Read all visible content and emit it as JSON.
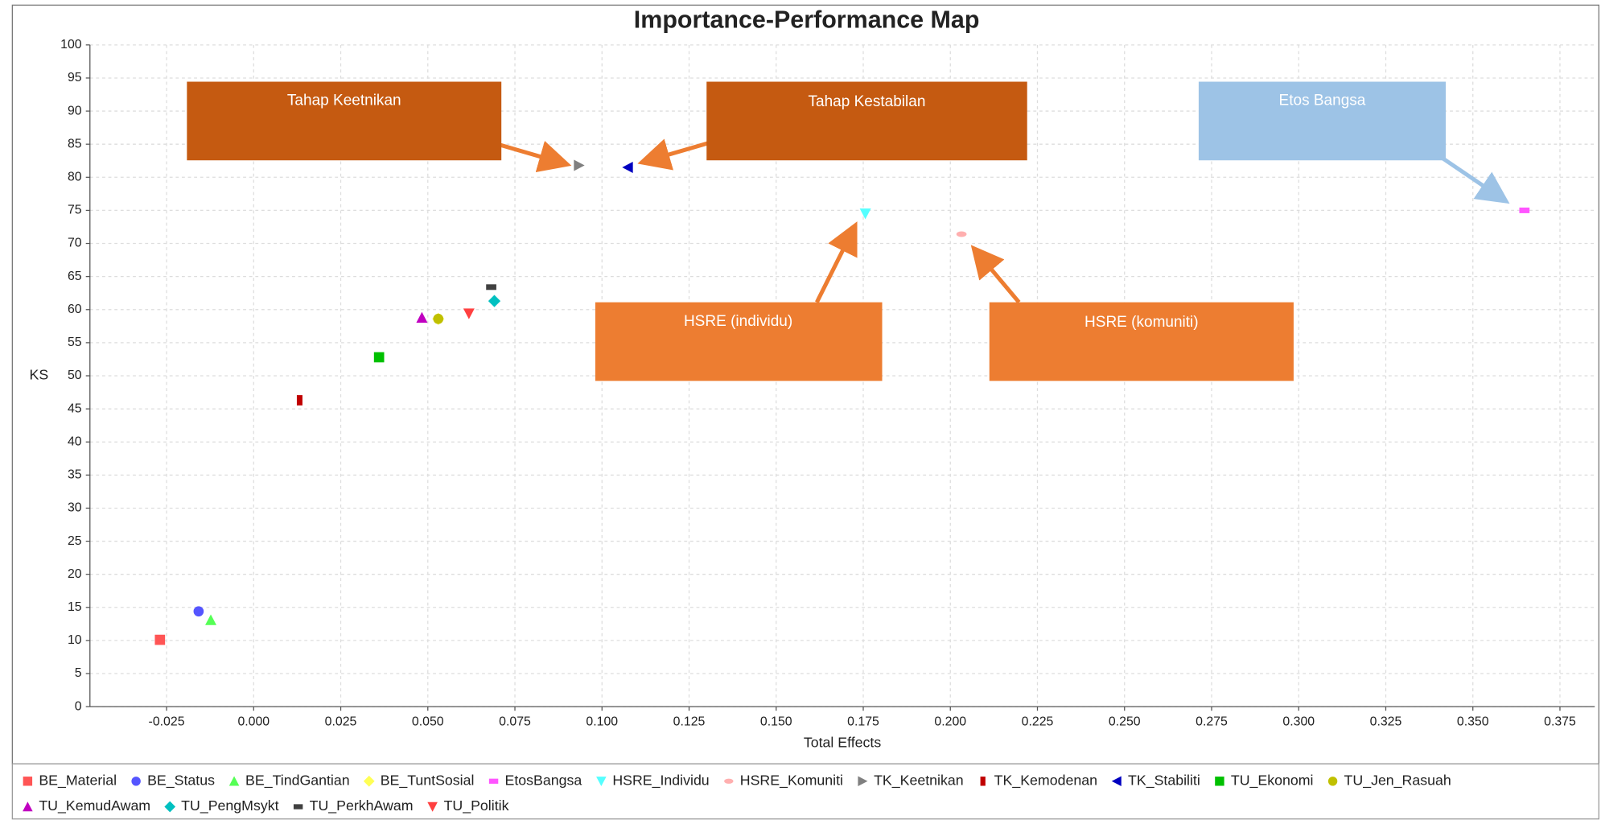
{
  "chart_data": {
    "type": "scatter",
    "title": "Importance-Performance Map",
    "x_label": "Total Effects",
    "y_label": "KS",
    "xlim": [
      -0.047,
      0.385
    ],
    "ylim": [
      0,
      100
    ],
    "xticks": [
      {
        "value": -0.025,
        "label": "-0.025"
      },
      {
        "value": 0,
        "label": "0.000"
      },
      {
        "value": 0.025,
        "label": "0.025"
      },
      {
        "value": 0.05,
        "label": "0.050"
      },
      {
        "value": 0.075,
        "label": "0.075"
      },
      {
        "value": 0.1,
        "label": "0.100"
      },
      {
        "value": 0.125,
        "label": "0.125"
      },
      {
        "value": 0.15,
        "label": "0.150"
      },
      {
        "value": 0.175,
        "label": "0.175"
      },
      {
        "value": 0.2,
        "label": "0.200"
      },
      {
        "value": 0.225,
        "label": "0.225"
      },
      {
        "value": 0.25,
        "label": "0.250"
      },
      {
        "value": 0.275,
        "label": "0.275"
      },
      {
        "value": 0.3,
        "label": "0.300"
      },
      {
        "value": 0.325,
        "label": "0.325"
      },
      {
        "value": 0.35,
        "label": "0.350"
      },
      {
        "value": 0.375,
        "label": "0.375"
      }
    ],
    "yticks": [
      0,
      5,
      10,
      15,
      20,
      25,
      30,
      35,
      40,
      45,
      50,
      55,
      60,
      65,
      70,
      75,
      80,
      85,
      90,
      95,
      100
    ],
    "grid": true,
    "legend": "bottom",
    "series": [
      {
        "name": "BE_Material",
        "color": "#ff5555",
        "marker": "square",
        "x": [
          -0.0269
        ],
        "values": [
          10.1
        ]
      },
      {
        "name": "BE_Status",
        "color": "#5555ff",
        "marker": "circle",
        "x": [
          -0.0158
        ],
        "values": [
          14.4
        ]
      },
      {
        "name": "BE_TindGantian",
        "color": "#55ff55",
        "marker": "triangle-up",
        "x": [
          -0.0123
        ],
        "values": [
          13.1
        ]
      },
      {
        "name": "BE_TuntSosial",
        "color": "#ffff55",
        "marker": "diamond",
        "x": [
          0.053
        ],
        "values": [
          58.6
        ]
      },
      {
        "name": "EtosBangsa",
        "color": "#ff55ff",
        "marker": "hbar",
        "x": [
          0.3648
        ],
        "values": [
          75.0
        ]
      },
      {
        "name": "HSRE_Individu",
        "color": "#55ffff",
        "marker": "triangle-down",
        "x": [
          0.1756
        ],
        "values": [
          74.5
        ]
      },
      {
        "name": "HSRE_Komuniti",
        "color": "#ffafaf",
        "marker": "ellipse",
        "x": [
          0.2032
        ],
        "values": [
          71.4
        ]
      },
      {
        "name": "TK_Keetnikan",
        "color": "#808080",
        "marker": "triangle-right",
        "x": [
          0.0934
        ],
        "values": [
          81.8
        ]
      },
      {
        "name": "TK_Kemodenan",
        "color": "#c00000",
        "marker": "vbar",
        "x": [
          0.0132
        ],
        "values": [
          46.3
        ]
      },
      {
        "name": "TK_Stabiliti",
        "color": "#0000c0",
        "marker": "triangle-left",
        "x": [
          0.1074
        ],
        "values": [
          81.5
        ]
      },
      {
        "name": "TU_Ekonomi",
        "color": "#00c000",
        "marker": "square",
        "x": [
          0.036
        ],
        "values": [
          52.8
        ]
      },
      {
        "name": "TU_Jen_Rasuah",
        "color": "#c0c000",
        "marker": "circle",
        "x": [
          0.053
        ],
        "values": [
          58.6
        ]
      },
      {
        "name": "TU_KemudAwam",
        "color": "#c000c0",
        "marker": "triangle-up",
        "x": [
          0.0483
        ],
        "values": [
          58.8
        ]
      },
      {
        "name": "TU_PengMsykt",
        "color": "#00c0c0",
        "marker": "diamond",
        "x": [
          0.0691
        ],
        "values": [
          61.3
        ]
      },
      {
        "name": "TU_PerkhAwam",
        "color": "#404040",
        "marker": "hbar",
        "x": [
          0.0682
        ],
        "values": [
          63.4
        ]
      },
      {
        "name": "TU_Politik",
        "color": "#ff4040",
        "marker": "triangle-down",
        "x": [
          0.0618
        ],
        "values": [
          59.4
        ]
      }
    ],
    "annotations": [
      "Tahap Keetnikan",
      "Tahap Kestabilan",
      "Etos Bangsa",
      "HSRE (individu)",
      "HSRE (komuniti)"
    ]
  }
}
